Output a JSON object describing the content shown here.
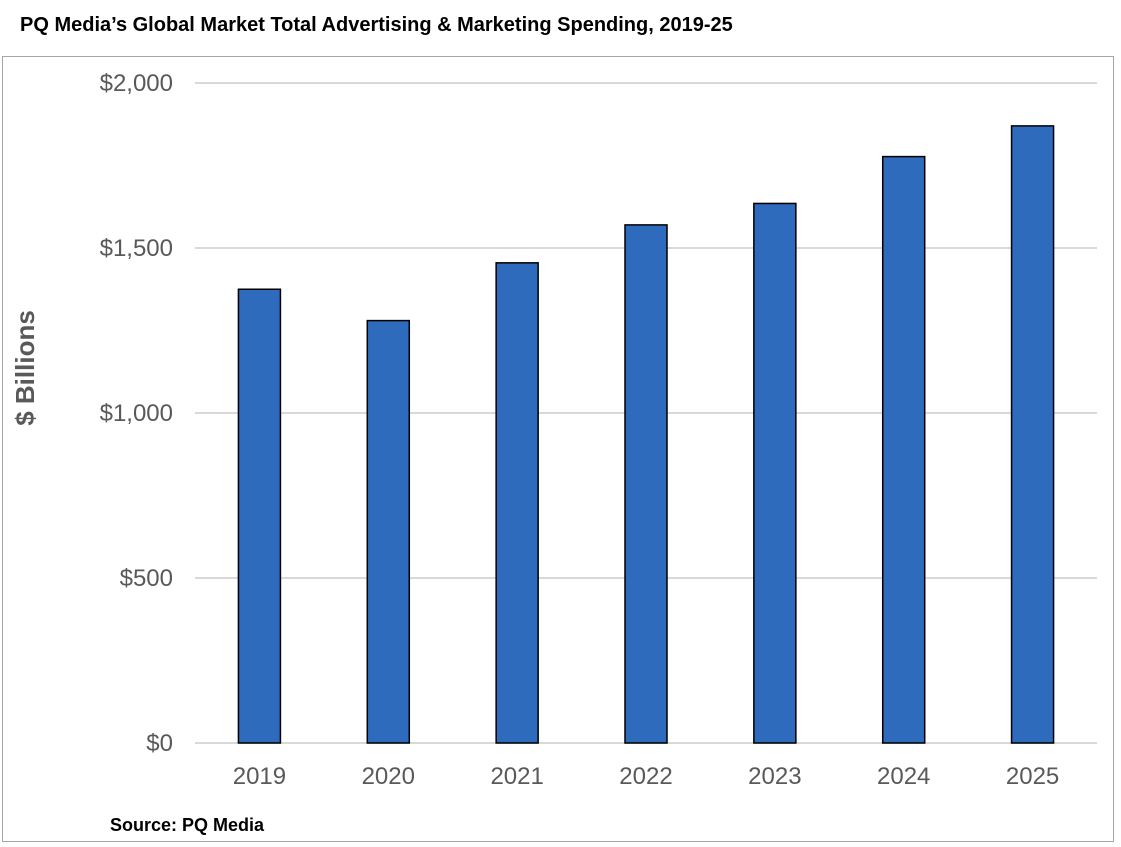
{
  "chart_data": {
    "type": "bar",
    "title": "PQ Media’s Global Market Total Advertising & Marketing Spending, 2019-25",
    "ylabel": "$ Billions",
    "xlabel": "",
    "categories": [
      "2019",
      "2020",
      "2021",
      "2022",
      "2023",
      "2024",
      "2025"
    ],
    "values": [
      1375,
      1280,
      1455,
      1570,
      1635,
      1777,
      1870
    ],
    "ylim": [
      0,
      2000
    ],
    "y_ticks": [
      0,
      500,
      1000,
      1500,
      2000
    ],
    "y_tick_labels": [
      "$0",
      "$500",
      "$1,000",
      "$1,500",
      "$2,000"
    ],
    "grid": true,
    "legend": "none",
    "colors": {
      "bar_fill": "#2e6bbd",
      "bar_stroke": "#000000",
      "grid": "#d9d9d9",
      "tick_text": "#595959"
    }
  },
  "source": "Source: PQ Media"
}
